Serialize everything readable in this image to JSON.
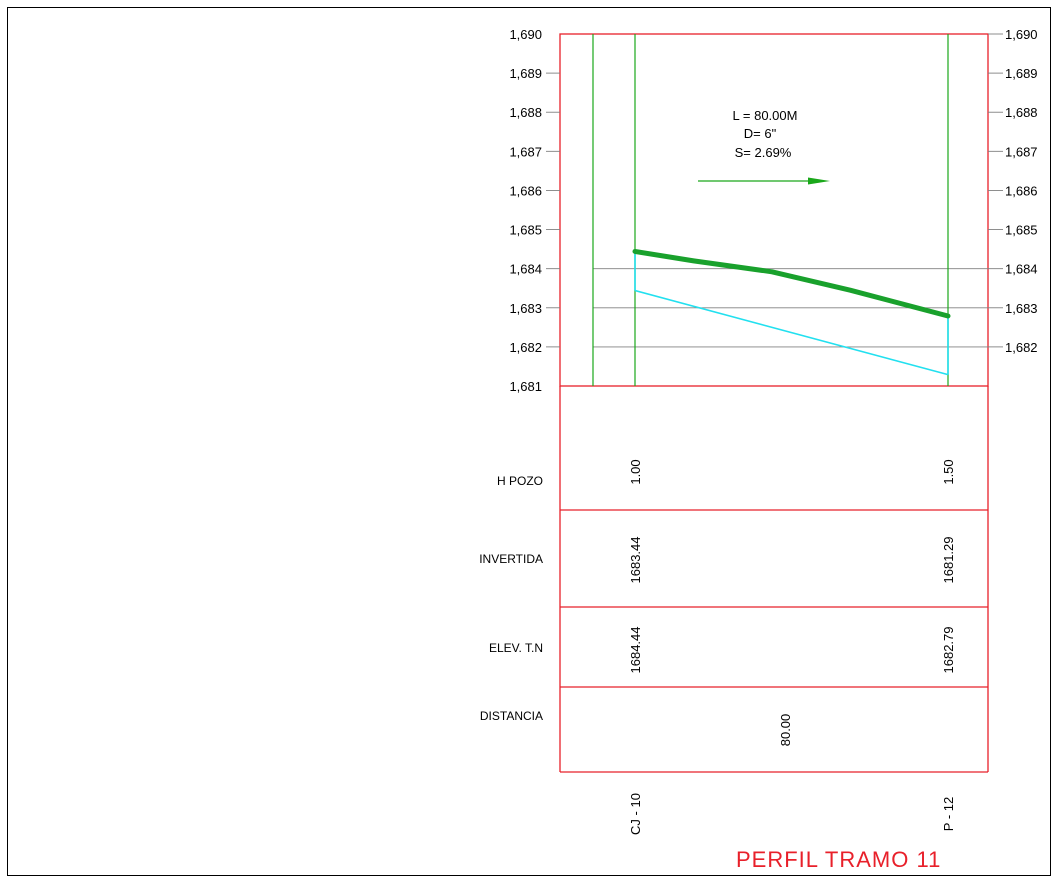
{
  "drawing": {
    "title": "PERFIL TRAMO 11",
    "pipe_info": {
      "length": "L = 80.00M",
      "diameter": "D= 6\"",
      "slope": "S= 2.69%"
    },
    "elevation_axis": {
      "min": 1681,
      "max": 1690,
      "ticks_left": [
        "1,690",
        "1,689",
        "1,688",
        "1,687",
        "1,686",
        "1,685",
        "1,684",
        "1,683",
        "1,682",
        "1,681"
      ],
      "ticks_right": [
        "1,690",
        "1,689",
        "1,688",
        "1,687",
        "1,686",
        "1,685",
        "1,684",
        "1,683",
        "1,682"
      ]
    },
    "stations": [
      {
        "name": "CJ - 10",
        "distance": 0,
        "h_pozo": "1.00",
        "invertida": "1683.44",
        "elev_tn": "1684.44",
        "ground_elev": 1684.44,
        "invert_elev": 1683.44
      },
      {
        "name": "P - 12",
        "distance": 80,
        "h_pozo": "1.50",
        "invertida": "1681.29",
        "elev_tn": "1682.79",
        "ground_elev": 1682.79,
        "invert_elev": 1681.29
      }
    ],
    "ground_profile": [
      {
        "distance": 0,
        "elev": 1684.44
      },
      {
        "distance": 15,
        "elev": 1684.2
      },
      {
        "distance": 35,
        "elev": 1683.92
      },
      {
        "distance": 55,
        "elev": 1683.45
      },
      {
        "distance": 80,
        "elev": 1682.79
      }
    ],
    "table_rows": {
      "h_pozo": "H POZO",
      "invertida": "INVERTIDA",
      "elev_tn": "ELEV. T.N",
      "distancia": "DISTANCIA"
    },
    "segment_distance": "80.00",
    "colors": {
      "frame_red": "#e8202a",
      "station_green": "#1aa81a",
      "invert_cyan": "#22e0ef",
      "ground_green": "#19a12c",
      "grid_gray": "#808080"
    }
  }
}
